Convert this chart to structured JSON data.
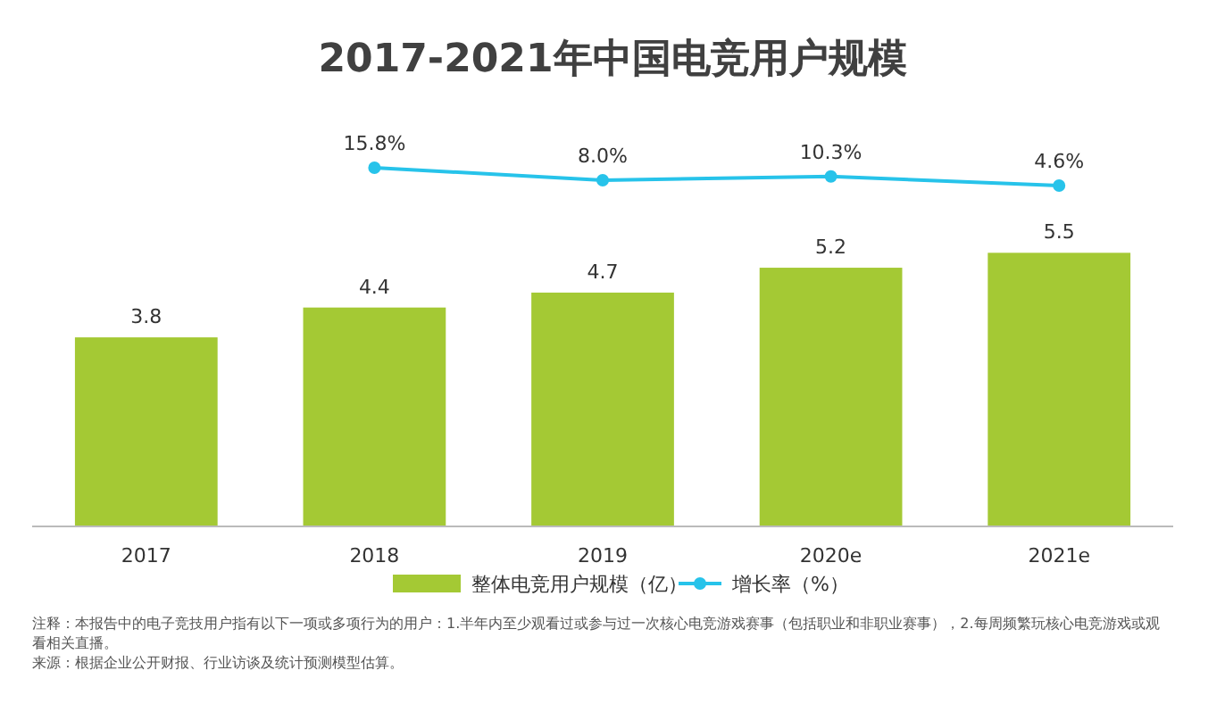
{
  "chart_data": [
    {
      "type": "line",
      "title": "2017-2021年中国电竞用户规模",
      "categories": [
        null,
        null,
        null,
        null,
        null
      ],
      "series": [
        {
          "name": "增长率（%）",
          "color": "#27c3ea",
          "values": [
            null,
            15.8,
            8.0,
            10.3,
            4.6
          ],
          "value_labels": [
            null,
            "15.8%",
            "8.0%",
            "10.3%",
            "4.6%"
          ]
        }
      ],
      "legend": "bottom",
      "marker": "circle",
      "tick_labels": false
    },
    {
      "type": "bar",
      "categories": [
        "2017",
        "2018",
        "2019",
        "2020e",
        "2021e"
      ],
      "series": [
        {
          "name": "整体电竞用户规模（亿）",
          "color": "#a4c934",
          "values": [
            3.8,
            4.4,
            4.7,
            5.2,
            5.5
          ]
        }
      ],
      "data_labels": true,
      "legend": "bottom",
      "tick_labels": "x",
      "annotations": [
        "注释：本报告中的电子竞技用户指有以下一项或多项行为的用户：1.半年内至少观看过或参与过一次核心电竞游戏赛事（包括职业和非职业赛事），2.每周频繁玩核心电竞游戏或观看相关直播。",
        "来源：根据企业公开财报、行业访谈及统计预测模型估算。"
      ]
    }
  ]
}
